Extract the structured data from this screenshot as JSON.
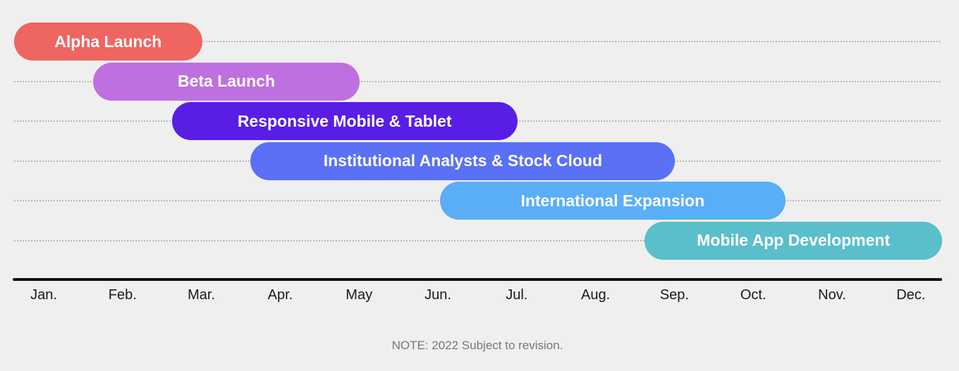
{
  "chart_data": {
    "type": "gantt",
    "months": [
      "Jan.",
      "Feb.",
      "Mar.",
      "Apr.",
      "May",
      "Jun.",
      "Jul.",
      "Aug.",
      "Sep.",
      "Oct.",
      "Nov.",
      "Dec."
    ],
    "tasks": [
      {
        "label": "Alpha Launch",
        "start": 0.0,
        "end": 2.0,
        "color": "#ee6561"
      },
      {
        "label": "Beta Launch",
        "start": 1.0,
        "end": 4.0,
        "color": "#bf70e0"
      },
      {
        "label": "Responsive Mobile & Tablet",
        "start": 2.0,
        "end": 6.0,
        "color": "#581ee6"
      },
      {
        "label": "Institutional Analysts & Stock Cloud",
        "start": 3.0,
        "end": 8.0,
        "color": "#5a70f5"
      },
      {
        "label": "International Expansion",
        "start": 5.4,
        "end": 9.4,
        "color": "#5aaef8"
      },
      {
        "label": "Mobile App Development",
        "start": 8.0,
        "end": 11.0,
        "color": "#5abfcb"
      }
    ]
  },
  "footer": {
    "note": "NOTE: 2022 Subject to revision."
  }
}
